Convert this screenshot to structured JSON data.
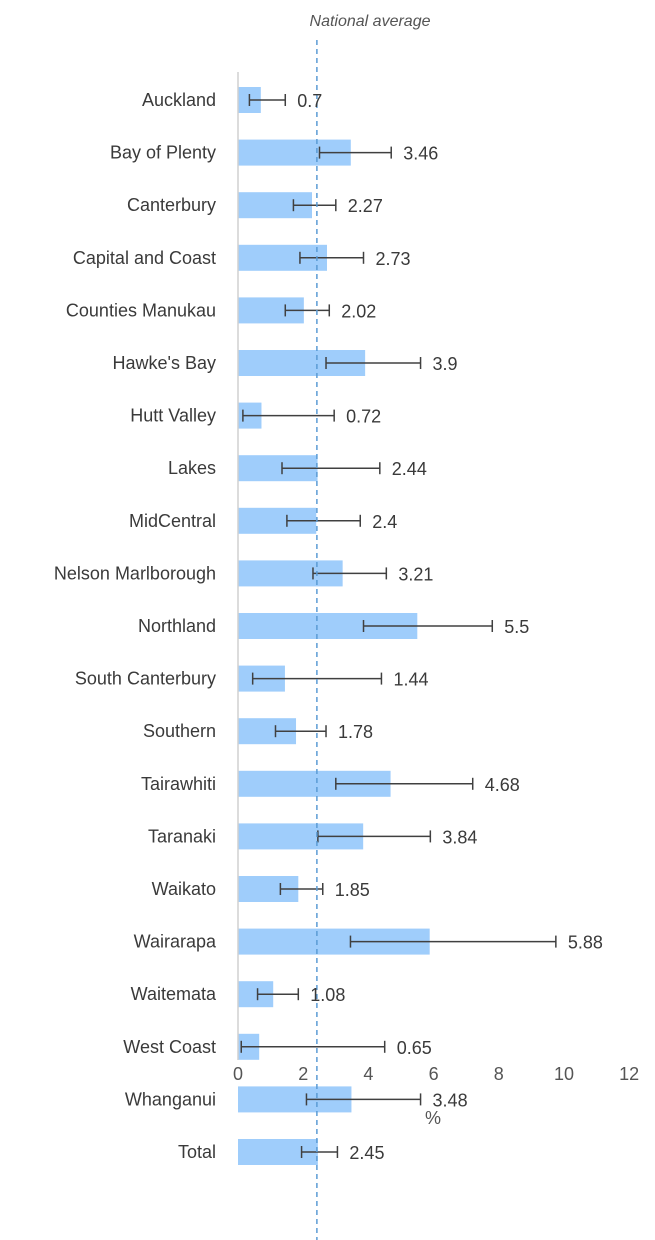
{
  "chart_data": {
    "type": "bar",
    "orientation": "horizontal",
    "categories": [
      "Auckland",
      "Bay of Plenty",
      "Canterbury",
      "Capital and Coast",
      "Counties Manukau",
      "Hawke's Bay",
      "Hutt Valley",
      "Lakes",
      "MidCentral",
      "Nelson Marlborough",
      "Northland",
      "South Canterbury",
      "Southern",
      "Tairawhiti",
      "Taranaki",
      "Waikato",
      "Wairarapa",
      "Waitemata",
      "West Coast",
      "Whanganui",
      "Total"
    ],
    "values": [
      0.7,
      3.46,
      2.27,
      2.73,
      2.02,
      3.9,
      0.72,
      2.44,
      2.4,
      3.21,
      5.5,
      1.44,
      1.78,
      4.68,
      3.84,
      1.85,
      5.88,
      1.08,
      0.65,
      3.48,
      2.45
    ],
    "value_labels": [
      "0.7",
      "3.46",
      "2.27",
      "2.73",
      "2.02",
      "3.9",
      "0.72",
      "2.44",
      "2.4",
      "3.21",
      "5.5",
      "1.44",
      "1.78",
      "4.68",
      "3.84",
      "1.85",
      "5.88",
      "1.08",
      "0.65",
      "3.48",
      "2.45"
    ],
    "error_low": [
      0.35,
      2.5,
      1.7,
      1.9,
      1.45,
      2.7,
      0.15,
      1.35,
      1.5,
      2.3,
      3.85,
      0.45,
      1.15,
      3.0,
      2.45,
      1.3,
      3.45,
      0.6,
      0.1,
      2.1,
      1.95
    ],
    "error_high": [
      1.45,
      4.7,
      3.0,
      3.85,
      2.8,
      5.6,
      2.95,
      4.35,
      3.75,
      4.55,
      7.8,
      4.4,
      2.7,
      7.2,
      5.9,
      2.6,
      9.75,
      1.85,
      4.5,
      5.6,
      3.05
    ],
    "xlim": [
      0,
      12
    ],
    "xticks": [
      0,
      2,
      4,
      6,
      8,
      10,
      12
    ],
    "xlabel": "%",
    "reference_line": {
      "value": 2.42,
      "label": "National average"
    },
    "colors": {
      "bar": "#9fcdfb",
      "error": "#404040",
      "reference": "#5b9bd5",
      "axis": "#d0d0d0"
    }
  }
}
